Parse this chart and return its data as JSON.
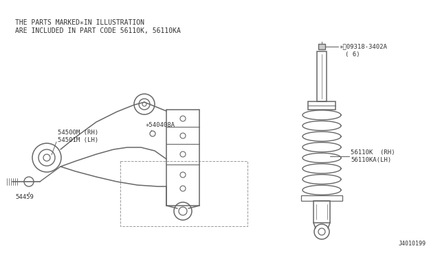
{
  "bg_color": "#ffffff",
  "line_color": "#666666",
  "text_color": "#333333",
  "header_line1": "THE PARTS MARKED✳IN ILLUSTRATION",
  "header_line2": "ARE INCLUDED IN PART CODE 56110K, 56110KA",
  "label_54500M": "54500M (RH)",
  "label_54501M": "54501M (LH)",
  "label_54459": "54459",
  "label_540408A": "✳540408A",
  "label_56110K": "56110K  (RH)",
  "label_56110KA": "56110KA(LH)",
  "label_09318": "✳Ⓝ09318-3402A",
  "label_09318_b": "( 6)",
  "label_J4010199": "J4010199",
  "font_size_header": 7.0,
  "font_size_label": 6.5,
  "font_size_small": 6.0
}
